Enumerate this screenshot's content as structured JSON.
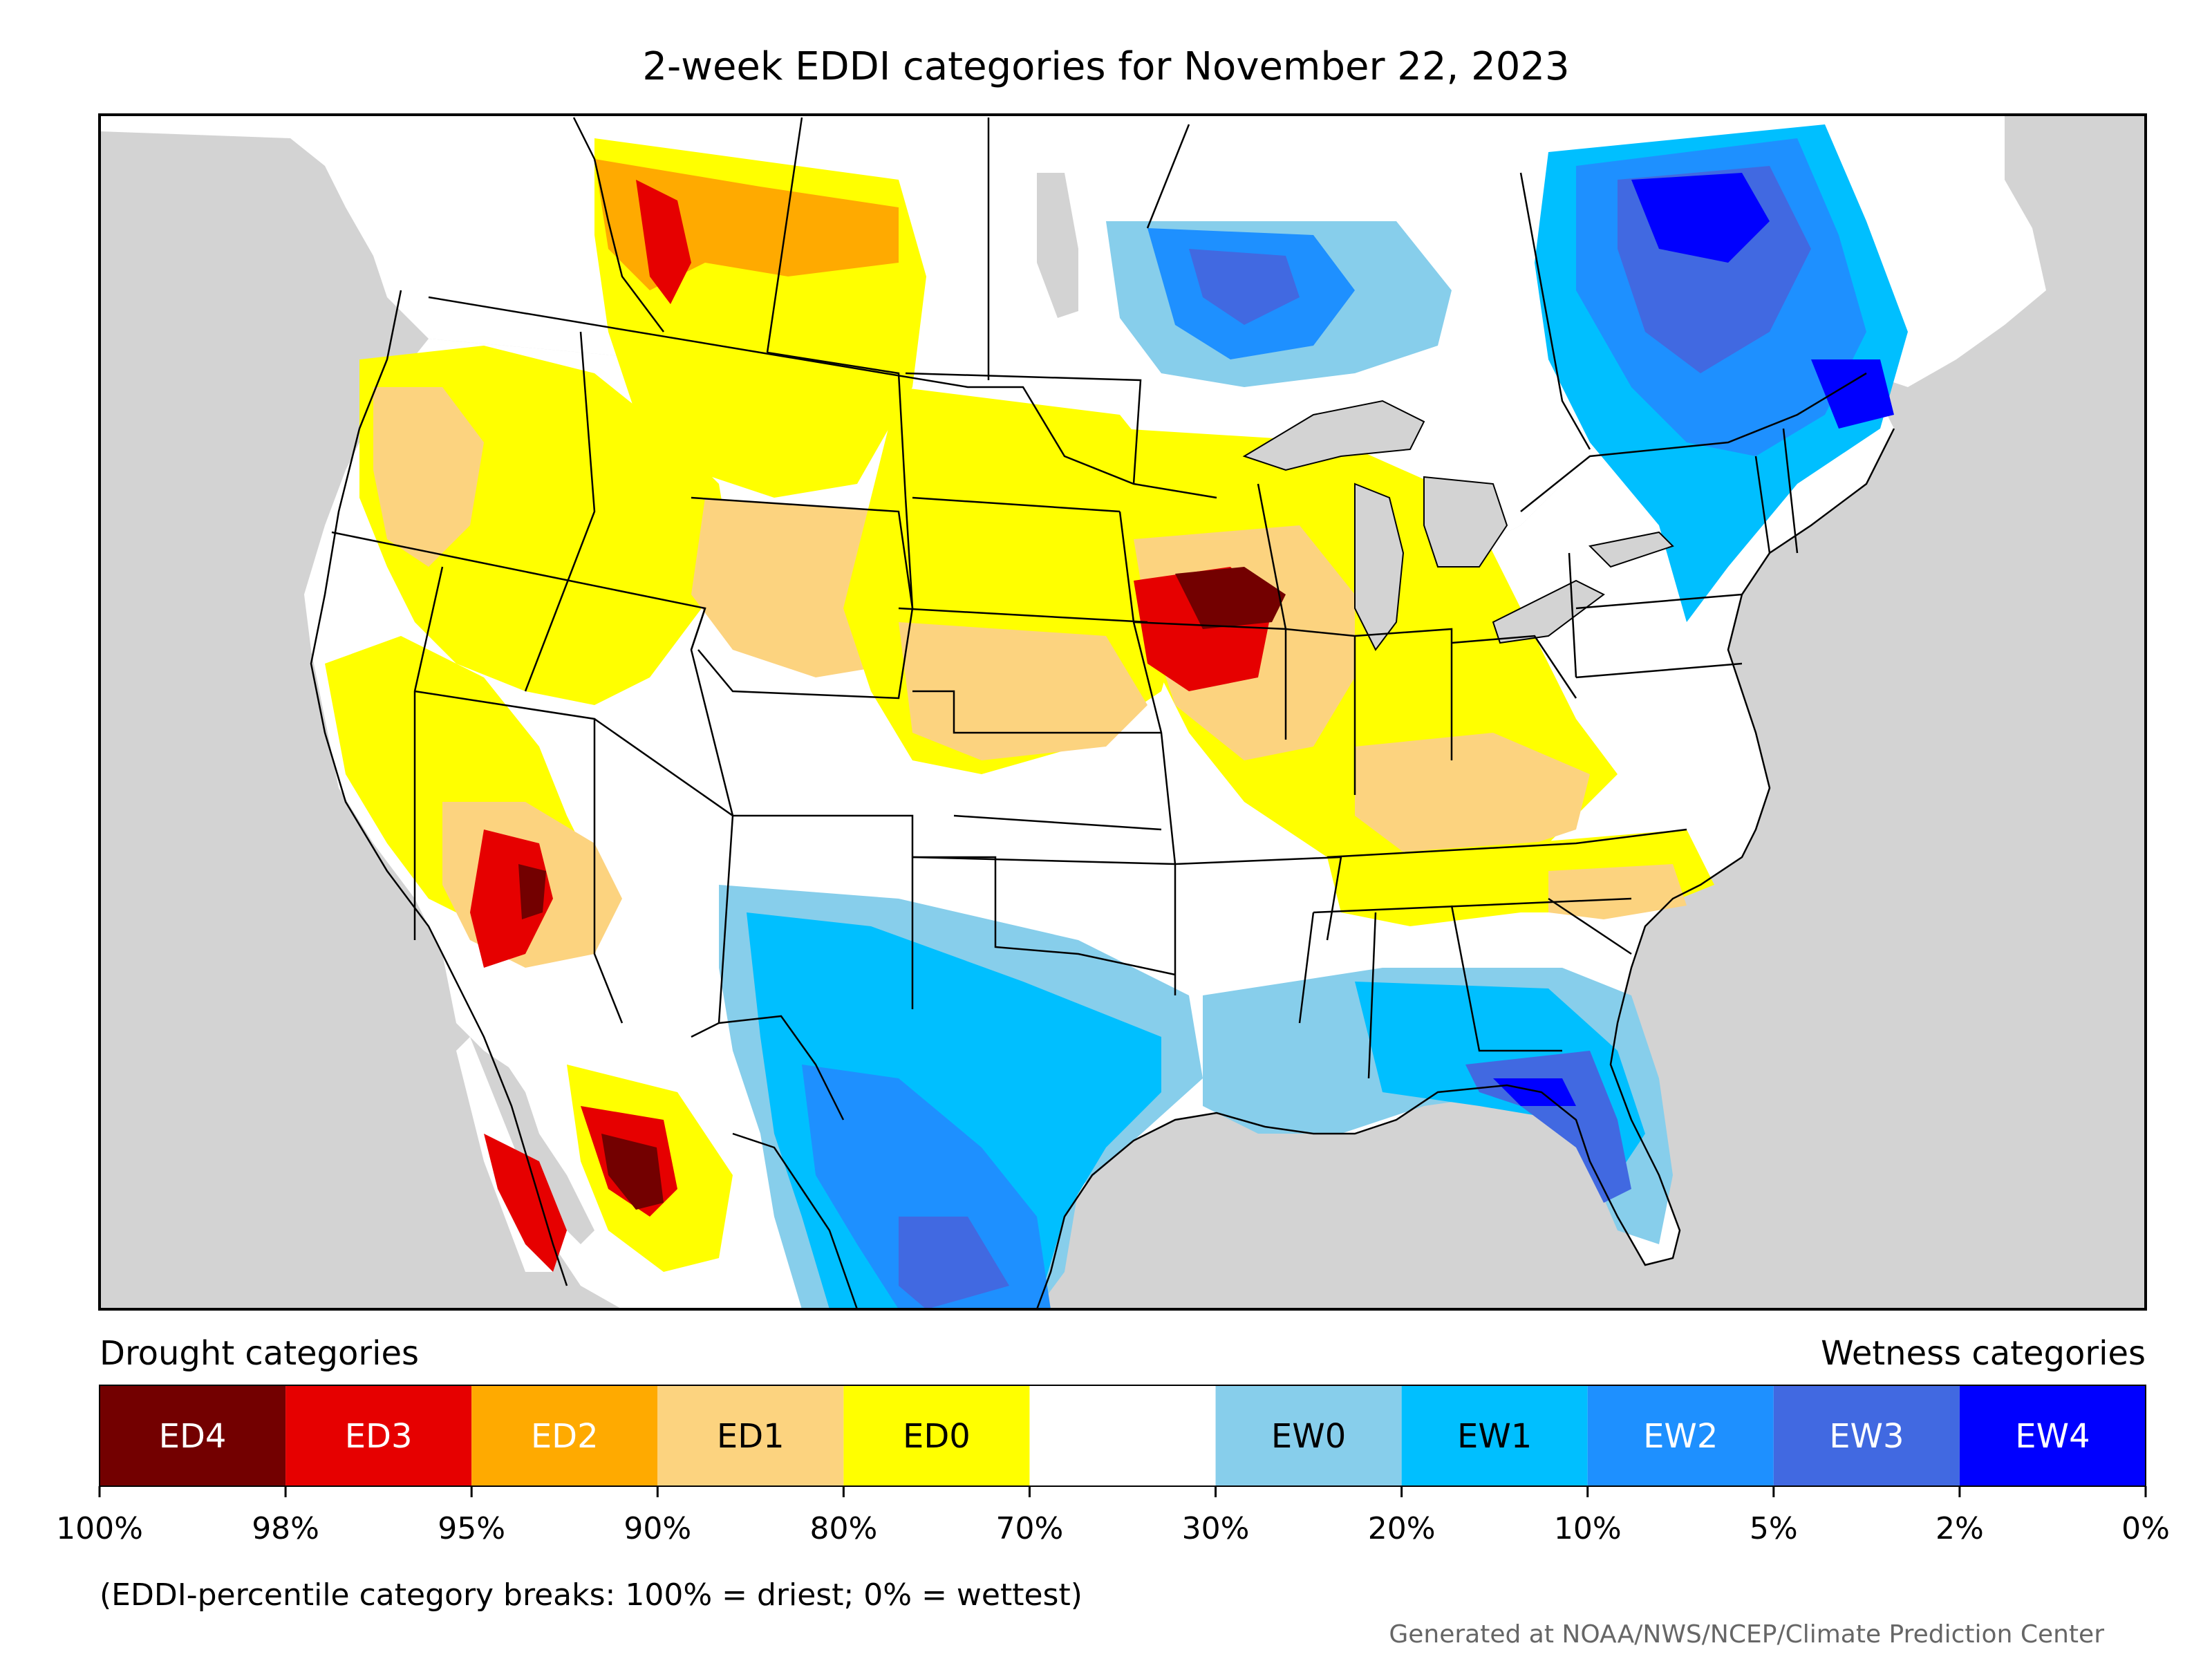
{
  "title": "2-week EDDI categories for November 22, 2023",
  "legend": {
    "drought_heading": "Drought categories",
    "wetness_heading": "Wetness categories",
    "categories": [
      {
        "label": "ED4",
        "color": "#730000",
        "text_color": "#ffffff"
      },
      {
        "label": "ED3",
        "color": "#e60000",
        "text_color": "#ffffff"
      },
      {
        "label": "ED2",
        "color": "#ffaa00",
        "text_color": "#ffffff"
      },
      {
        "label": "ED1",
        "color": "#fcd37f",
        "text_color": "#000000"
      },
      {
        "label": "ED0",
        "color": "#ffff00",
        "text_color": "#000000"
      },
      {
        "label": "",
        "color": "#ffffff",
        "text_color": "#000000"
      },
      {
        "label": "EW0",
        "color": "#87ceeb",
        "text_color": "#000000"
      },
      {
        "label": "EW1",
        "color": "#00bfff",
        "text_color": "#000000"
      },
      {
        "label": "EW2",
        "color": "#1e90ff",
        "text_color": "#ffffff"
      },
      {
        "label": "EW3",
        "color": "#4169e1",
        "text_color": "#ffffff"
      },
      {
        "label": "EW4",
        "color": "#0000ff",
        "text_color": "#ffffff"
      }
    ],
    "breaks": [
      "100%",
      "98%",
      "95%",
      "90%",
      "80%",
      "70%",
      "30%",
      "20%",
      "10%",
      "5%",
      "2%",
      "0%"
    ]
  },
  "footnote": "(EDDI-percentile category breaks: 100% = driest; 0% = wettest)",
  "credit": "Generated at NOAA/NWS/NCEP/Climate Prediction Center",
  "map": {
    "ocean_color": "#d3d3d3",
    "land_color": "#ffffff",
    "border_color": "#000000"
  }
}
